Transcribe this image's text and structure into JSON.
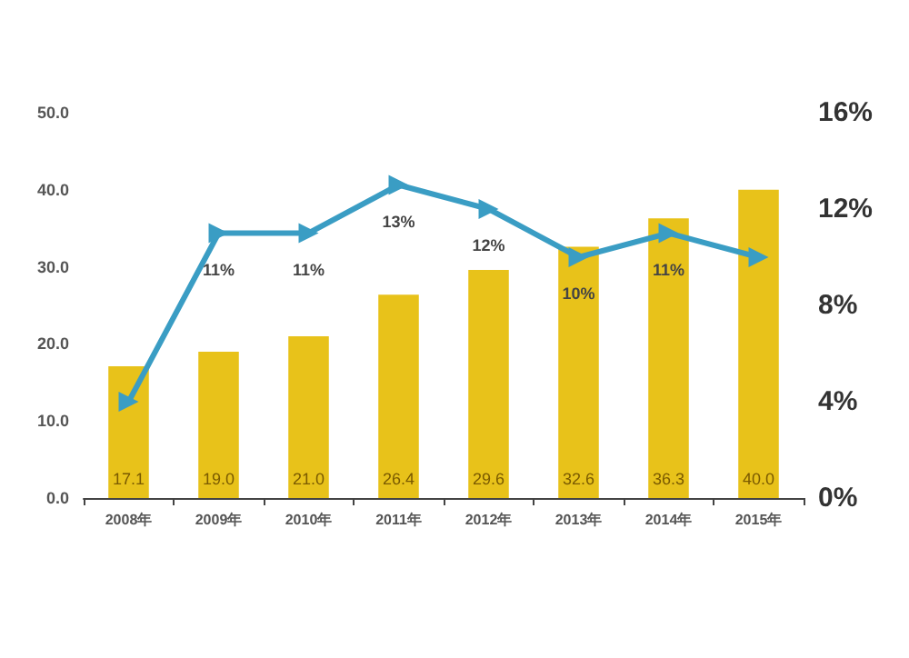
{
  "chart_data": {
    "type": "bar",
    "categories": [
      "2008年",
      "2009年",
      "2010年",
      "2011年",
      "2012年",
      "2013年",
      "2014年",
      "2015年"
    ],
    "series": [
      {
        "color": "#e8c21a",
        "values": [
          17.1,
          19.0,
          21.0,
          26.4,
          29.6,
          32.6,
          36.3,
          40.0
        ],
        "value_labels": [
          "17.1",
          "19.0",
          "21.0",
          "26.4",
          "29.6",
          "32.6",
          "36.3",
          "40.0"
        ]
      },
      {
        "type": "line",
        "axis": "y2",
        "color": "#3a9dc4",
        "marker": "triangle",
        "values": [
          4,
          11,
          11,
          13,
          12,
          10,
          11,
          10
        ],
        "value_labels": [
          null,
          "11%",
          "11%",
          "13%",
          "12%",
          "10%",
          "11%",
          null
        ]
      }
    ],
    "ylim": [
      0,
      50
    ],
    "yticks": [
      {
        "value": 0,
        "label": "0.0"
      },
      {
        "value": 10,
        "label": "10.0"
      },
      {
        "value": 20,
        "label": "20.0"
      },
      {
        "value": 30,
        "label": "30.0"
      },
      {
        "value": 40,
        "label": "40.0"
      },
      {
        "value": 50,
        "label": "50.0"
      }
    ],
    "y2lim": [
      0,
      16
    ],
    "y2ticks": [
      {
        "value": 0,
        "label": "0%"
      },
      {
        "value": 4,
        "label": "4%"
      },
      {
        "value": 8,
        "label": "8%"
      },
      {
        "value": 12,
        "label": "12%"
      },
      {
        "value": 16,
        "label": "16%"
      }
    ],
    "grid": false
  }
}
